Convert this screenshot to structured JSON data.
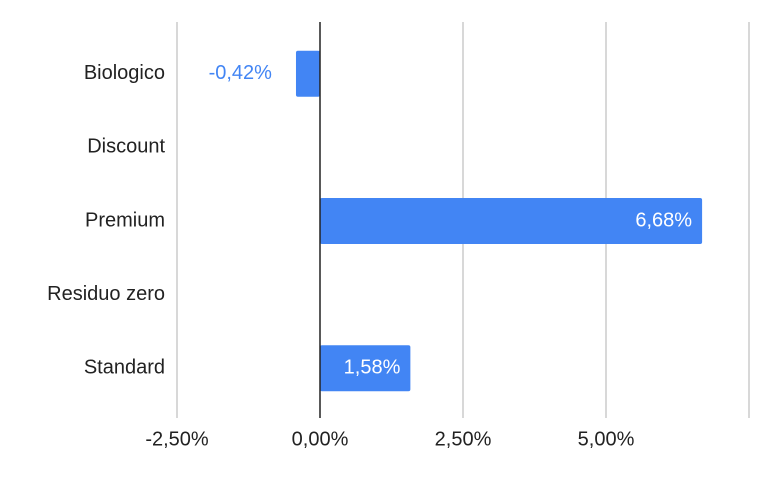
{
  "chart_data": {
    "type": "hbar",
    "categories": [
      "Biologico",
      "Discount",
      "Premium",
      "Residuo zero",
      "Standard"
    ],
    "values": [
      -0.42,
      null,
      6.68,
      null,
      1.58
    ],
    "value_labels": [
      "-0,42%",
      null,
      "6,68%",
      null,
      "1,58%"
    ],
    "color": "#4285f4",
    "xlim": [
      -2.5,
      7.5
    ],
    "xticks": [
      {
        "value": -2.5,
        "label": "-2,50%"
      },
      {
        "value": 0,
        "label": "0,00%"
      },
      {
        "value": 2.5,
        "label": "2,50%"
      },
      {
        "value": 5,
        "label": "5,00%"
      }
    ],
    "grid": true
  }
}
